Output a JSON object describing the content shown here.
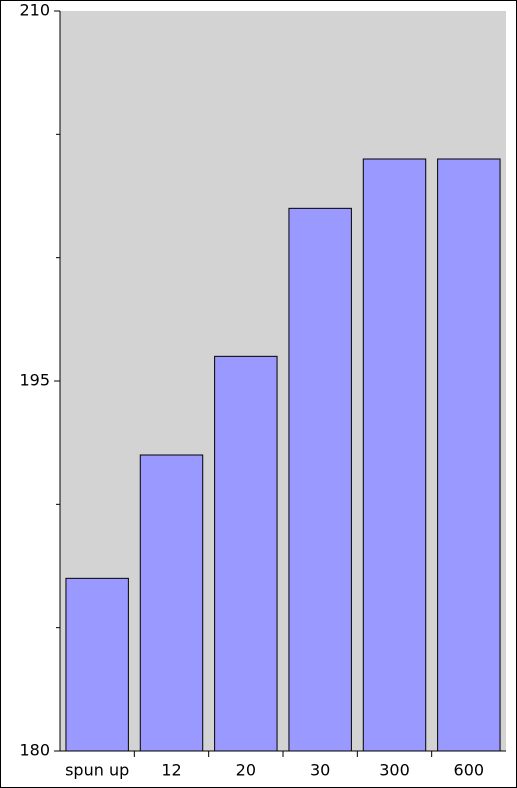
{
  "chart_data": {
    "type": "bar",
    "categories": [
      "spun up",
      "12",
      "20",
      "30",
      "300",
      "600"
    ],
    "values": [
      187,
      192,
      196,
      202,
      204,
      204
    ],
    "color": "#9999ff",
    "background": "#d3d3d3",
    "ylim": [
      180,
      210
    ],
    "yticks": [
      180,
      195,
      210
    ],
    "yminor_ticks": [
      185,
      190,
      200,
      205
    ]
  }
}
